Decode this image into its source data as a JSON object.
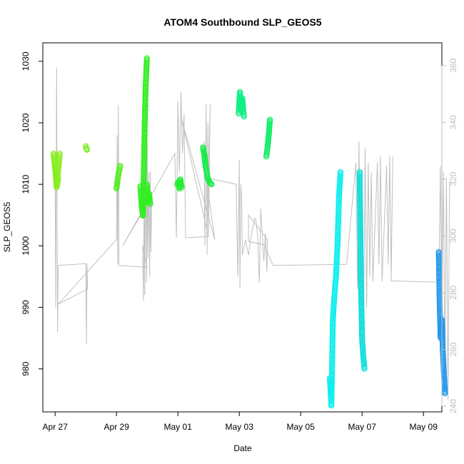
{
  "chart_data": {
    "type": "scatter",
    "title": "ATOM4 Southbound SLP_GEOS5",
    "xlabel": "Date",
    "ylabel": "SLP_GEOS5",
    "x_ticks": [
      "Apr 27",
      "Apr 29",
      "May 01",
      "May 03",
      "May 05",
      "May 07",
      "May 09"
    ],
    "y_ticks": [
      980,
      990,
      1000,
      1010,
      1020,
      1030
    ],
    "y2_ticks": [
      240,
      260,
      280,
      300,
      320,
      340,
      360
    ],
    "xlim_days": [
      -0.4,
      12.6
    ],
    "x_tick_days": [
      0,
      2,
      4,
      6,
      8,
      10,
      12
    ],
    "ylim": [
      973,
      1033
    ],
    "y2lim": [
      238,
      368
    ],
    "grid": false,
    "secondary_axis_color": "#bebebe",
    "gray_line_color": "#c0c0c0",
    "gray_trace": [
      [
        0.0,
        1013
      ],
      [
        0.02,
        990
      ],
      [
        0.05,
        1029
      ],
      [
        0.08,
        986
      ],
      [
        0.1,
        996.8
      ],
      [
        1.0,
        997.1
      ],
      [
        1.02,
        984
      ],
      [
        1.04,
        997.1
      ],
      [
        1.06,
        993
      ],
      [
        0.1,
        990.5
      ],
      [
        2.0,
        1001
      ],
      [
        2.02,
        1018
      ],
      [
        2.04,
        997
      ],
      [
        2.06,
        1022.8
      ],
      [
        2.08,
        996.8
      ],
      [
        3.0,
        996.5
      ],
      [
        2.85,
        1000
      ],
      [
        2.88,
        991
      ],
      [
        2.9,
        1011
      ],
      [
        2.92,
        992
      ],
      [
        2.95,
        1019
      ],
      [
        2.98,
        994
      ],
      [
        3.0,
        1017
      ],
      [
        3.02,
        998
      ],
      [
        3.05,
        1012
      ],
      [
        3.08,
        995
      ],
      [
        3.1,
        1012
      ],
      [
        3.12,
        999
      ],
      [
        3.15,
        1008
      ],
      [
        2.2,
        1000
      ],
      [
        3.9,
        1015
      ],
      [
        3.95,
        1001.3
      ],
      [
        4.0,
        1023.5
      ],
      [
        4.05,
        1012
      ],
      [
        4.1,
        1025
      ],
      [
        4.15,
        1015
      ],
      [
        4.2,
        1021.5
      ],
      [
        4.25,
        1001.3
      ],
      [
        5.0,
        1001.5
      ],
      [
        4.1,
        1021
      ],
      [
        5.2,
        1001
      ],
      [
        4.9,
        1012
      ],
      [
        4.85,
        1017
      ],
      [
        4.88,
        1000
      ],
      [
        4.92,
        1023
      ],
      [
        4.95,
        998.5
      ],
      [
        4.98,
        1020
      ],
      [
        5.0,
        1002
      ],
      [
        5.05,
        1023
      ],
      [
        5.0,
        1011
      ],
      [
        5.9,
        1010
      ],
      [
        5.95,
        995
      ],
      [
        6.0,
        1014
      ],
      [
        6.02,
        993
      ],
      [
        6.05,
        1010
      ],
      [
        6.08,
        1007
      ],
      [
        6.1,
        998.5
      ],
      [
        6.2,
        1001
      ],
      [
        6.3,
        998.5
      ],
      [
        6.4,
        1002
      ],
      [
        6.5,
        1004.5
      ],
      [
        6.55,
        1004
      ],
      [
        6.6,
        1001.5
      ],
      [
        6.65,
        994
      ],
      [
        6.7,
        1006
      ],
      [
        6.8,
        997.5
      ],
      [
        6.85,
        1002
      ],
      [
        6.9,
        995.8
      ],
      [
        6.92,
        1001
      ],
      [
        6.3,
        1005
      ],
      [
        6.3,
        1000.7
      ],
      [
        6.8,
        1000.2
      ],
      [
        7.1,
        996.8
      ],
      [
        9.5,
        997
      ],
      [
        9.8,
        1013.5
      ],
      [
        9.85,
        993
      ],
      [
        9.9,
        1017
      ],
      [
        9.95,
        993
      ],
      [
        10.0,
        1012
      ],
      [
        10.05,
        988
      ],
      [
        10.1,
        1016
      ],
      [
        10.15,
        990
      ],
      [
        10.2,
        1013.5
      ],
      [
        10.25,
        995
      ],
      [
        10.3,
        1012
      ],
      [
        10.35,
        994.2
      ],
      [
        10.5,
        1013.5
      ],
      [
        10.55,
        997
      ],
      [
        10.6,
        1014.5
      ],
      [
        10.65,
        994.2
      ],
      [
        10.8,
        1013
      ],
      [
        10.85,
        997
      ],
      [
        10.9,
        1014.5
      ],
      [
        10.95,
        995
      ],
      [
        11.0,
        1014.5
      ],
      [
        10.95,
        994.3
      ],
      [
        12.5,
        994.1
      ],
      [
        12.55,
        1013
      ],
      [
        12.6,
        987
      ],
      [
        12.65,
        1012
      ],
      [
        12.7,
        980
      ],
      [
        12.75,
        1011
      ],
      [
        12.8,
        975
      ],
      [
        12.85,
        1010.5
      ]
    ],
    "series": [
      {
        "color": "#88ee22",
        "segments": [
          {
            "x": [
              -0.05,
              0.0,
              0.05,
              0.1,
              0.15
            ],
            "y": [
              1015,
              1012.5,
              1010,
              1012.2,
              1015
            ]
          },
          {
            "x": [
              0.0,
              0.05,
              0.1
            ],
            "y": [
              1013,
              1009.5,
              1011
            ]
          }
        ]
      },
      {
        "color": "#77ee22",
        "segments": [
          {
            "x": [
              1.0,
              1.02,
              1.04
            ],
            "y": [
              1016.2,
              1015.8,
              1015.6
            ]
          }
        ]
      },
      {
        "color": "#55ee22",
        "segments": [
          {
            "x": [
              2.0,
              2.03,
              2.06,
              2.09,
              2.12
            ],
            "y": [
              1009.3,
              1010.5,
              1011.5,
              1012.3,
              1013
            ]
          }
        ]
      },
      {
        "color": "#33ee22",
        "segments": [
          {
            "x": [
              2.78,
              2.82,
              2.86
            ],
            "y": [
              1009.7,
              1006.5,
              1004.9
            ]
          },
          {
            "x": [
              2.86,
              2.89,
              2.92,
              2.95,
              2.99
            ],
            "y": [
              1005,
              1012,
              1020,
              1026,
              1030.5
            ]
          },
          {
            "x": [
              2.99,
              3.02,
              3.06,
              3.1
            ],
            "y": [
              1010,
              1007,
              1008.5,
              1006.8
            ]
          }
        ]
      },
      {
        "color": "#22ee33",
        "segments": [
          {
            "x": [
              3.98,
              4.02,
              4.05,
              4.08,
              4.12
            ],
            "y": [
              1010,
              1010.4,
              1009.3,
              1010.8,
              1009.5
            ]
          }
        ]
      },
      {
        "color": "#11ee44",
        "segments": [
          {
            "x": [
              4.82,
              4.86,
              4.9,
              4.94,
              4.97,
              5.05,
              5.1
            ],
            "y": [
              1016,
              1014.8,
              1013,
              1012,
              1011,
              1010.2,
              1010
            ]
          }
        ]
      },
      {
        "color": "#11ee88",
        "segments": [
          {
            "x": [
              5.98,
              6.02,
              6.06,
              6.1,
              6.15
            ],
            "y": [
              1021.5,
              1025,
              1022,
              1024,
              1021
            ]
          }
        ]
      },
      {
        "color": "#11ee66",
        "segments": [
          {
            "x": [
              6.88,
              6.92,
              6.96,
              7.0
            ],
            "y": [
              1014.5,
              1016,
              1018,
              1020.5
            ]
          }
        ]
      },
      {
        "color": "#11eeee",
        "segments": [
          {
            "x": [
              8.95,
              9.0,
              9.05,
              9.1,
              9.15,
              9.2,
              9.25,
              9.3
            ],
            "y": [
              978.5,
              974,
              988,
              992,
              995,
              1000,
              1008,
              1012
            ]
          }
        ]
      },
      {
        "color": "#11dddd",
        "segments": [
          {
            "x": [
              9.92,
              9.96,
              10.0,
              10.04,
              10.08
            ],
            "y": [
              1012,
              995,
              985,
              982,
              980
            ]
          }
        ]
      },
      {
        "color": "#2299ee",
        "segments": [
          {
            "x": [
              12.5,
              12.53,
              12.56,
              12.6,
              12.63,
              12.66,
              12.7
            ],
            "y": [
              999,
              990,
              985,
              988,
              983,
              980,
              976
            ]
          }
        ]
      }
    ]
  }
}
